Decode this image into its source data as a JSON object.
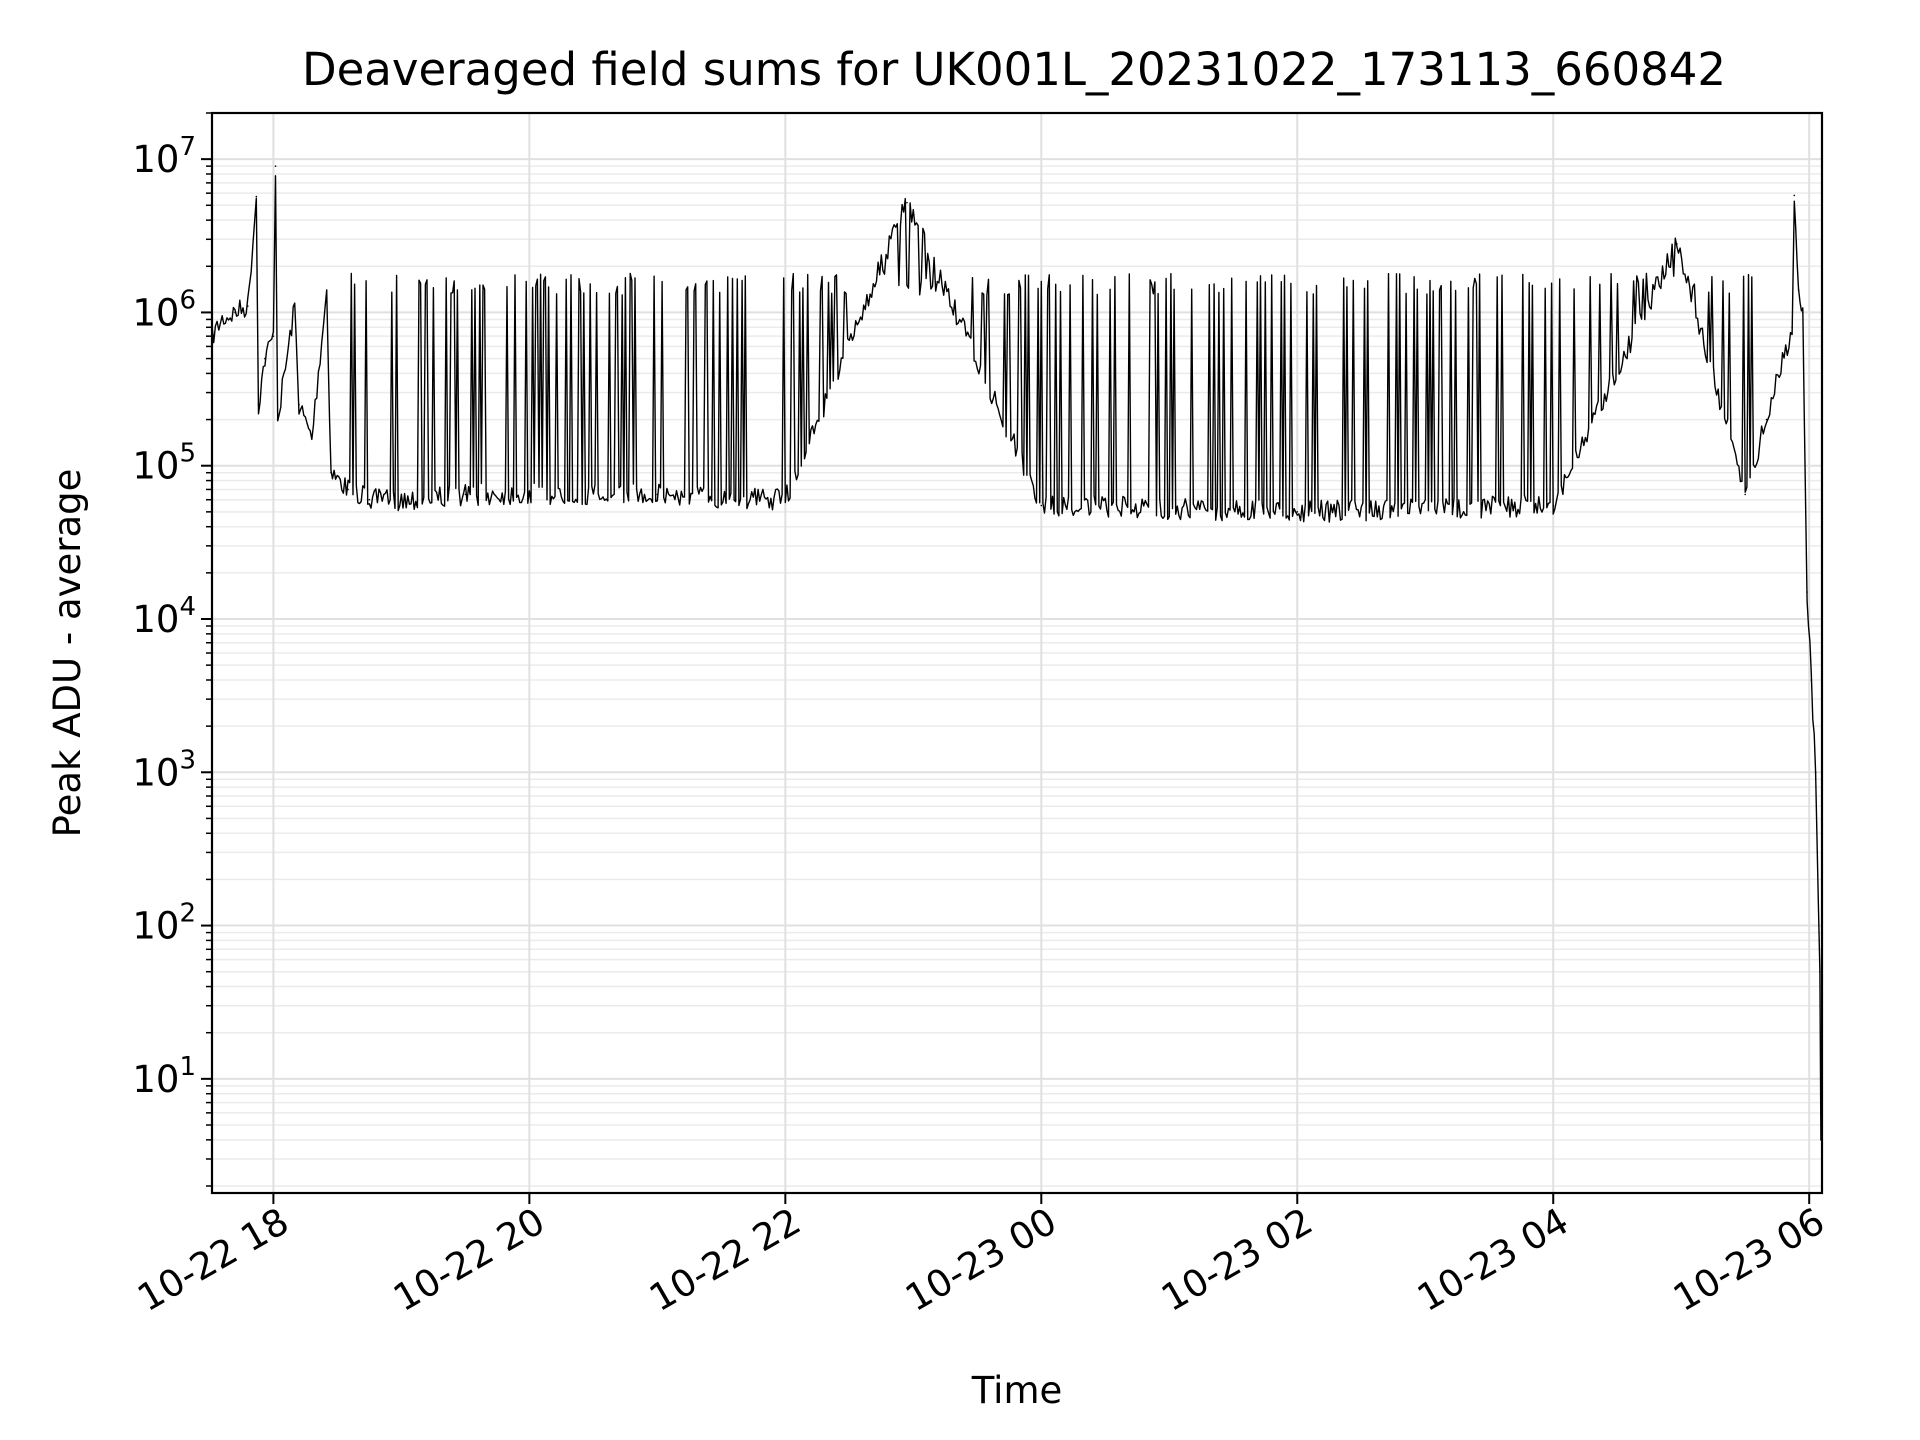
{
  "chart_data": {
    "type": "line",
    "title": "Deaveraged field sums for UK001L_20231022_173113_660842",
    "xlabel": "Time",
    "ylabel": "Peak ADU - average",
    "yscale": "log",
    "grid": true,
    "legend": "none",
    "ylim": [
      1.8,
      20000000
    ],
    "xlim": [
      "2023-10-22T17:31:13",
      "2023-10-23T06:06:00"
    ],
    "xticks": [
      {
        "t": "2023-10-22T18:00:00",
        "label": "10-22 18"
      },
      {
        "t": "2023-10-22T20:00:00",
        "label": "10-22 20"
      },
      {
        "t": "2023-10-22T22:00:00",
        "label": "10-22 22"
      },
      {
        "t": "2023-10-23T00:00:00",
        "label": "10-23 00"
      },
      {
        "t": "2023-10-23T02:00:00",
        "label": "10-23 02"
      },
      {
        "t": "2023-10-23T04:00:00",
        "label": "10-23 04"
      },
      {
        "t": "2023-10-23T06:00:00",
        "label": "10-23 06"
      }
    ],
    "yticks": [
      {
        "v": 10,
        "base": "10",
        "exp": "1"
      },
      {
        "v": 100,
        "base": "10",
        "exp": "2"
      },
      {
        "v": 1000,
        "base": "10",
        "exp": "3"
      },
      {
        "v": 10000,
        "base": "10",
        "exp": "4"
      },
      {
        "v": 100000,
        "base": "10",
        "exp": "5"
      },
      {
        "v": 1000000,
        "base": "10",
        "exp": "6"
      },
      {
        "v": 10000000,
        "base": "10",
        "exp": "7"
      }
    ],
    "series": [
      {
        "color": "#000000",
        "points": [
          [
            "2023-10-22T17:31:13",
            700000
          ],
          [
            "2023-10-22T17:36:00",
            900000
          ],
          [
            "2023-10-22T17:42:00",
            1000000
          ],
          [
            "2023-10-22T17:48:00",
            1100000
          ],
          [
            "2023-10-22T17:52:00",
            5700000
          ],
          [
            "2023-10-22T17:53:00",
            250000
          ],
          [
            "2023-10-22T17:56:00",
            500000
          ],
          [
            "2023-10-22T18:00:00",
            700000
          ],
          [
            "2023-10-22T18:01:00",
            9000000
          ],
          [
            "2023-10-22T18:02:00",
            200000
          ],
          [
            "2023-10-22T18:10:00",
            1100000
          ],
          [
            "2023-10-22T18:12:00",
            250000
          ],
          [
            "2023-10-22T18:18:00",
            150000
          ],
          [
            "2023-10-22T18:25:00",
            1400000
          ],
          [
            "2023-10-22T18:27:00",
            90000
          ],
          [
            "2023-10-22T18:35:00",
            70000
          ],
          [
            "2023-10-22T18:45:00",
            60000
          ],
          [
            "2023-10-22T19:00:00",
            60000
          ],
          [
            "2023-10-22T19:30:00",
            65000
          ],
          [
            "2023-10-22T20:00:00",
            65000
          ],
          [
            "2023-10-22T21:00:00",
            65000
          ],
          [
            "2023-10-22T22:00:00",
            60000
          ],
          [
            "2023-10-22T22:57:00",
            5200000
          ],
          [
            "2023-10-23T00:00:00",
            55000
          ],
          [
            "2023-10-23T02:00:00",
            50000
          ],
          [
            "2023-10-23T04:00:00",
            55000
          ],
          [
            "2023-10-23T04:58:00",
            2800000
          ],
          [
            "2023-10-23T05:30:00",
            65000
          ],
          [
            "2023-10-23T05:40:00",
            200000
          ],
          [
            "2023-10-23T05:52:00",
            800000
          ],
          [
            "2023-10-23T05:53:00",
            5800000
          ],
          [
            "2023-10-23T05:55:00",
            1400000
          ],
          [
            "2023-10-23T05:57:00",
            1000000
          ],
          [
            "2023-10-23T05:59:00",
            15000
          ],
          [
            "2023-10-23T06:01:00",
            4000
          ],
          [
            "2023-10-23T06:03:00",
            1000
          ],
          [
            "2023-10-23T06:05:00",
            50
          ],
          [
            "2023-10-23T06:05:30",
            4
          ]
        ]
      }
    ]
  }
}
